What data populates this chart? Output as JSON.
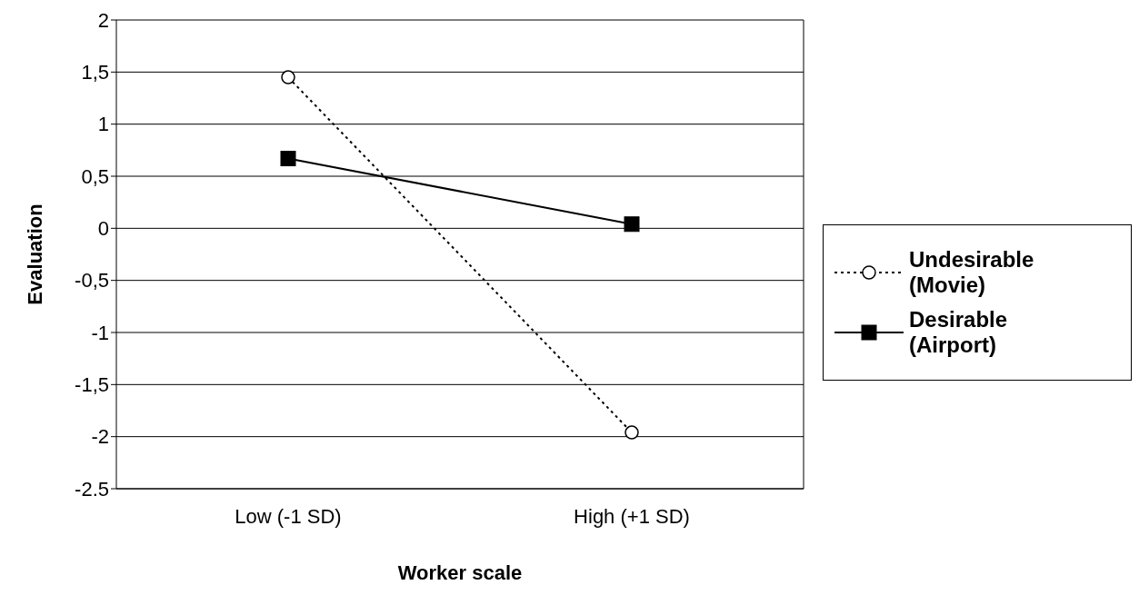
{
  "chart_data": {
    "type": "line",
    "xlabel": "Worker scale",
    "ylabel": "Evaluation",
    "categories": [
      "Low (-1 SD)",
      "High (+1 SD)"
    ],
    "series": [
      {
        "name": "Undesirable (Movie)",
        "color": "#000000",
        "values": [
          1.45,
          -1.96
        ],
        "marker": "circle",
        "line_style": "dotted"
      },
      {
        "name": "Desirable (Airport)",
        "color": "#000000",
        "values": [
          0.67,
          0.04
        ],
        "marker": "square",
        "line_style": "solid"
      }
    ],
    "ylim": [
      -2.5,
      2
    ],
    "yticks": [
      -2.5,
      {
        "value": -2,
        "label": "-2"
      },
      {
        "value": -1.5,
        "label": "-1,5"
      },
      -1,
      {
        "value": -0.5,
        "label": "-0,5"
      },
      0,
      {
        "value": 0.5,
        "label": "0,5"
      },
      1,
      {
        "value": 1.5,
        "label": "1,5"
      },
      2
    ],
    "grid": "y",
    "legend": "right"
  }
}
